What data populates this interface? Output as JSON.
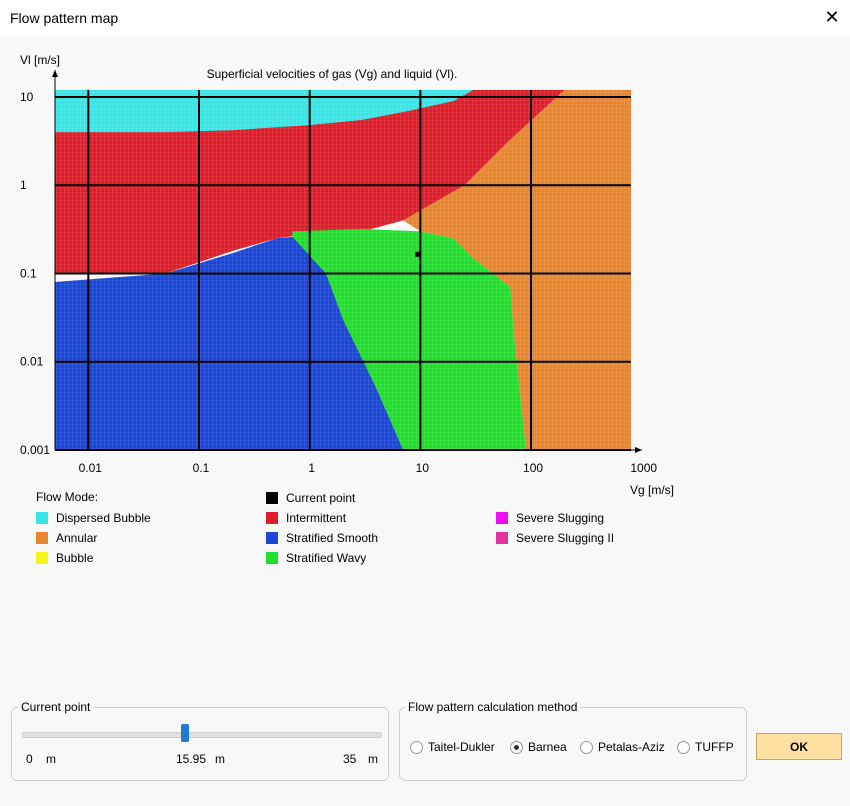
{
  "window": {
    "title": "Flow pattern map"
  },
  "chart_data": {
    "type": "heatmap",
    "title": "Superficial velocities of gas (Vg) and liquid (Vl).",
    "xlabel": "Vg [m/s]",
    "ylabel": "Vl [m/s]",
    "x_scale": "log",
    "y_scale": "log",
    "xlim": [
      0.005,
      800
    ],
    "ylim": [
      0.001,
      12
    ],
    "x_tick_labels": [
      "0.01",
      "0.1",
      "1",
      "10",
      "100",
      "1000"
    ],
    "x_ticks": [
      0.01,
      0.1,
      1,
      10,
      100,
      1000
    ],
    "y_tick_labels": [
      "10",
      "1",
      "0.1",
      "0.01",
      "0.001"
    ],
    "y_ticks": [
      10,
      1,
      0.1,
      0.01,
      0.001
    ],
    "grid": true,
    "current_point": {
      "vg": 9.5,
      "vl": 0.165
    },
    "regions": [
      {
        "mode": "Dispersed Bubble",
        "color": "#38e6e6",
        "description": "top-left band, Vl above ~4-7 m/s, Vg below ~8 m/s"
      },
      {
        "mode": "Intermittent",
        "color": "#e01e2a",
        "description": "upper-left block between Dispersed Bubble and Stratified regions"
      },
      {
        "mode": "Stratified Smooth",
        "color": "#1b47d6",
        "description": "lower-left region, Vg below ~6 m/s, Vl below ~0.2 m/s"
      },
      {
        "mode": "Stratified Wavy",
        "color": "#21e02c",
        "description": "middle band, Vg ~0.7 to ~65 m/s, Vl below ~0.3 m/s"
      },
      {
        "mode": "Annular",
        "color": "#e8862e",
        "description": "right region, high Vg"
      }
    ],
    "legend": {
      "title": "Flow Mode:",
      "items": [
        {
          "label": "Dispersed Bubble",
          "color": "#38e6e6"
        },
        {
          "label": "Annular",
          "color": "#e8862e"
        },
        {
          "label": "Bubble",
          "color": "#f5f51a"
        },
        {
          "label": "Current point",
          "color": "#000000"
        },
        {
          "label": "Intermittent",
          "color": "#e01e2a"
        },
        {
          "label": "Stratified Smooth",
          "color": "#1b47d6"
        },
        {
          "label": "Stratified Wavy",
          "color": "#21e02c"
        },
        {
          "label": "Severe Slugging",
          "color": "#ee11ee"
        },
        {
          "label": "Severe Slugging II",
          "color": "#e0339b"
        }
      ]
    }
  },
  "current_point_panel": {
    "label": "Current point",
    "value_fraction": 0.456,
    "min_label": "0",
    "min_unit": "m",
    "value_label": "15.95",
    "value_unit": "m",
    "max_label": "35",
    "max_unit": "m"
  },
  "method_panel": {
    "label": "Flow pattern calculation method",
    "options": [
      {
        "label": "Taitel-Dukler",
        "selected": false
      },
      {
        "label": "Barnea",
        "selected": true
      },
      {
        "label": "Petalas-Aziz",
        "selected": false
      },
      {
        "label": "TUFFP",
        "selected": false
      }
    ]
  },
  "ok_button": {
    "label": "OK"
  }
}
